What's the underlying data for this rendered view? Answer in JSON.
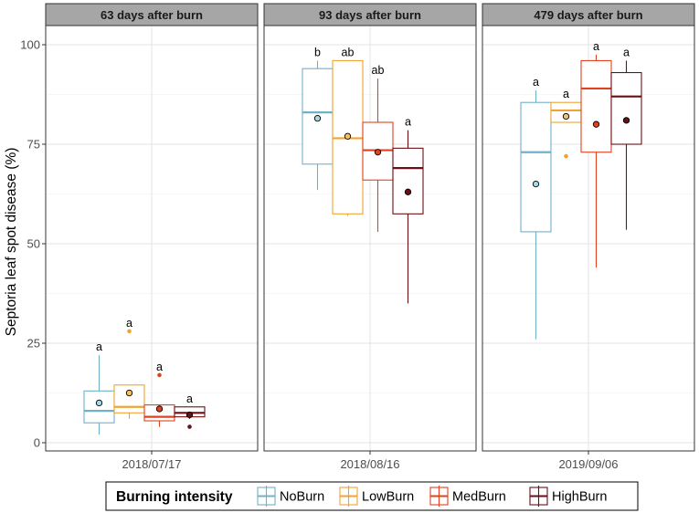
{
  "chart_data": {
    "type": "boxplot",
    "ylabel": "Septoria leaf spot disease (%)",
    "ylim": [
      -2,
      103
    ],
    "yticks": [
      0,
      25,
      50,
      75,
      100
    ],
    "legend": {
      "title": "Burning intensity",
      "position": "bottom"
    },
    "series": [
      {
        "name": "NoBurn",
        "color": "#6fb2c8",
        "fill": "#a8d8e6"
      },
      {
        "name": "LowBurn",
        "color": "#f0a430",
        "fill": "#f8c060"
      },
      {
        "name": "MedBurn",
        "color": "#e0421e",
        "fill": "#e0421e"
      },
      {
        "name": "HighBurn",
        "color": "#6b0f14",
        "fill": "#6b0f14"
      }
    ],
    "panels": [
      {
        "strip": "63 days after burn",
        "date": "2018/07/17",
        "boxes": [
          {
            "series": "NoBurn",
            "q1": 5,
            "median": 8,
            "q3": 13,
            "whisker_low": 2,
            "whisker_high": 22,
            "mean": 10,
            "outliers": [],
            "letter": "a"
          },
          {
            "series": "LowBurn",
            "q1": 7.5,
            "median": 9,
            "q3": 14.5,
            "whisker_low": 6,
            "whisker_high": 14.5,
            "mean": 12.5,
            "outliers": [
              28
            ],
            "letter": "a"
          },
          {
            "series": "MedBurn",
            "q1": 5.5,
            "median": 6.5,
            "q3": 9.5,
            "whisker_low": 4,
            "whisker_high": 9.5,
            "mean": 8.5,
            "outliers": [
              17
            ],
            "letter": "a"
          },
          {
            "series": "HighBurn",
            "q1": 6.5,
            "median": 7.5,
            "q3": 9,
            "whisker_low": 6,
            "whisker_high": 9,
            "mean": 7,
            "outliers": [
              4
            ],
            "letter": "a"
          }
        ]
      },
      {
        "strip": "93 days after burn",
        "date": "2018/08/16",
        "boxes": [
          {
            "series": "NoBurn",
            "q1": 70,
            "median": 83,
            "q3": 94,
            "whisker_low": 63.5,
            "whisker_high": 96,
            "mean": 81.5,
            "outliers": [],
            "letter": "b"
          },
          {
            "series": "LowBurn",
            "q1": 57.5,
            "median": 76.5,
            "q3": 96,
            "whisker_low": 57,
            "whisker_high": 96,
            "mean": 77,
            "outliers": [],
            "letter": "ab"
          },
          {
            "series": "MedBurn",
            "q1": 66,
            "median": 73.5,
            "q3": 80.5,
            "whisker_low": 53,
            "whisker_high": 91.5,
            "mean": 73,
            "outliers": [],
            "letter": "ab"
          },
          {
            "series": "HighBurn",
            "q1": 57.5,
            "median": 69,
            "q3": 74,
            "whisker_low": 35,
            "whisker_high": 78.5,
            "mean": 63,
            "outliers": [],
            "letter": "a"
          }
        ]
      },
      {
        "strip": "479 days after burn",
        "date": "2019/09/06",
        "boxes": [
          {
            "series": "NoBurn",
            "q1": 53,
            "median": 73,
            "q3": 85.5,
            "whisker_low": 26,
            "whisker_high": 88.5,
            "mean": 65,
            "outliers": [],
            "letter": "a"
          },
          {
            "series": "LowBurn",
            "q1": 80.5,
            "median": 83.5,
            "q3": 85.5,
            "whisker_low": 80.5,
            "whisker_high": 85.5,
            "mean": 82,
            "outliers": [
              72
            ],
            "letter": "a"
          },
          {
            "series": "MedBurn",
            "q1": 73,
            "median": 89,
            "q3": 96,
            "whisker_low": 44,
            "whisker_high": 97.5,
            "mean": 80,
            "outliers": [],
            "letter": "a"
          },
          {
            "series": "HighBurn",
            "q1": 75,
            "median": 87,
            "q3": 93,
            "whisker_low": 53.5,
            "whisker_high": 96,
            "mean": 81,
            "outliers": [],
            "letter": "a"
          }
        ]
      }
    ]
  }
}
